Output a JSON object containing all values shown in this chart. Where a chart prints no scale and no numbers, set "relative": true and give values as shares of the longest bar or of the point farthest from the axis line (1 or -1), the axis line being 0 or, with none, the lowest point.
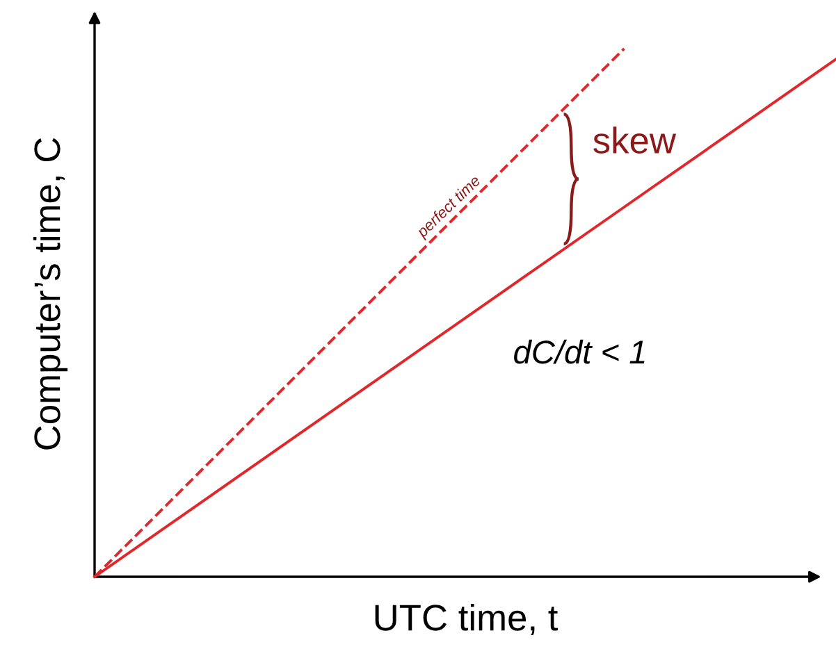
{
  "chart_data": {
    "type": "line",
    "relative": true,
    "xlabel": "UTC time, t",
    "ylabel": "Computer’s time, C",
    "categories": [
      null,
      null,
      null,
      null,
      null,
      null,
      null,
      null
    ],
    "series": [
      {
        "name": "perfect time",
        "color": "#e0282c",
        "line_style": "dashed",
        "values": [
          0,
          0.2,
          0.4,
          0.6,
          0.8,
          1.0,
          null,
          null
        ]
      },
      {
        "color": "#e0282c",
        "line_style": "solid",
        "values": [
          0,
          0.14,
          0.28,
          0.42,
          0.56,
          0.7,
          0.84,
          0.98
        ]
      }
    ],
    "annotations": [
      "skew",
      "dC/dt < 1"
    ],
    "marker": "none"
  }
}
